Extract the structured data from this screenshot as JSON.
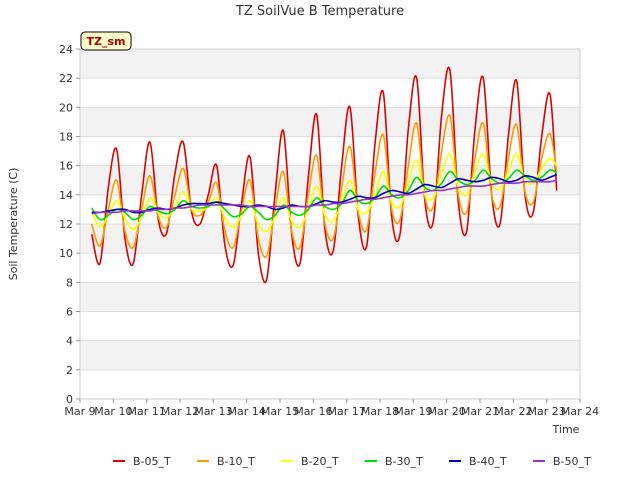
{
  "chart_data": {
    "type": "line",
    "title": "TZ SoilVue B Temperature",
    "xlabel": "Time",
    "ylabel": "Soil Temperature (C)",
    "badge": "TZ_sm",
    "ylim": [
      0,
      24
    ],
    "yticks": [
      0,
      2,
      4,
      6,
      8,
      10,
      12,
      14,
      16,
      18,
      20,
      22,
      24
    ],
    "xlim": [
      9,
      24
    ],
    "xticks": [
      9,
      10,
      11,
      12,
      13,
      14,
      15,
      16,
      17,
      18,
      19,
      20,
      21,
      22,
      23,
      24
    ],
    "xtick_labels": [
      "Mar 9",
      "Mar 10",
      "Mar 11",
      "Mar 12",
      "Mar 13",
      "Mar 14",
      "Mar 15",
      "Mar 16",
      "Mar 17",
      "Mar 18",
      "Mar 19",
      "Mar 20",
      "Mar 21",
      "Mar 22",
      "Mar 23",
      "Mar 24"
    ],
    "legend_position": "bottom",
    "grid": "alternating horizontal bands",
    "band_color": "#f2f2f2",
    "x": [
      9.35,
      9.6,
      9.85,
      10.1,
      10.35,
      10.6,
      10.85,
      11.1,
      11.35,
      11.6,
      11.85,
      12.1,
      12.35,
      12.6,
      12.85,
      13.1,
      13.35,
      13.6,
      13.85,
      14.1,
      14.35,
      14.6,
      14.85,
      15.1,
      15.35,
      15.6,
      15.85,
      16.1,
      16.35,
      16.6,
      16.85,
      17.1,
      17.35,
      17.6,
      17.85,
      18.1,
      18.35,
      18.6,
      18.85,
      19.1,
      19.35,
      19.6,
      19.85,
      20.1,
      20.35,
      20.6,
      20.85,
      21.1,
      21.35,
      21.6,
      21.85,
      22.1,
      22.35,
      22.6,
      22.85,
      23.1,
      23.3
    ],
    "series": [
      {
        "name": "B-05_T",
        "color": "#dd0000",
        "values": [
          11.3,
          9.3,
          14.5,
          17.1,
          11.0,
          9.3,
          14.0,
          17.6,
          12.3,
          11.4,
          15.5,
          17.6,
          12.8,
          12.0,
          14.0,
          16.0,
          10.5,
          9.2,
          13.5,
          16.6,
          10.0,
          8.2,
          14.0,
          18.4,
          11.3,
          9.3,
          15.2,
          19.5,
          11.6,
          10.2,
          16.0,
          20.0,
          12.5,
          10.5,
          17.5,
          21.0,
          12.5,
          11.3,
          18.5,
          22.0,
          13.5,
          12.2,
          19.5,
          22.5,
          13.5,
          11.5,
          18.5,
          22.0,
          14.0,
          12.0,
          18.0,
          21.8,
          14.0,
          12.8,
          18.0,
          20.9,
          14.3
        ]
      },
      {
        "name": "B-10_T",
        "color": "#ff9900",
        "values": [
          12.0,
          10.5,
          13.0,
          15.0,
          11.5,
          10.4,
          13.0,
          15.3,
          12.5,
          11.8,
          14.0,
          15.8,
          13.0,
          12.6,
          13.5,
          14.8,
          11.5,
          10.4,
          13.0,
          15.0,
          11.0,
          9.8,
          13.0,
          15.6,
          11.5,
          10.4,
          14.0,
          16.7,
          12.0,
          11.0,
          14.5,
          17.3,
          12.8,
          11.6,
          15.5,
          18.1,
          13.0,
          12.3,
          16.0,
          18.9,
          13.8,
          13.2,
          17.0,
          19.4,
          14.0,
          12.8,
          16.5,
          18.9,
          14.0,
          13.2,
          16.5,
          18.8,
          14.2,
          13.5,
          16.5,
          18.2,
          15.5
        ]
      },
      {
        "name": "B-20_T",
        "color": "#ffff00",
        "values": [
          12.8,
          11.8,
          12.6,
          13.6,
          12.4,
          11.6,
          12.5,
          13.8,
          12.8,
          12.4,
          13.2,
          14.2,
          13.0,
          12.9,
          13.2,
          13.8,
          12.4,
          11.8,
          12.6,
          13.6,
          12.0,
          11.5,
          12.5,
          13.8,
          12.2,
          11.8,
          13.0,
          14.6,
          12.6,
          12.2,
          13.5,
          15.0,
          13.0,
          12.8,
          14.0,
          15.6,
          13.5,
          13.2,
          14.8,
          16.4,
          14.0,
          13.8,
          15.5,
          16.8,
          14.5,
          14.0,
          15.6,
          16.8,
          14.8,
          14.4,
          15.6,
          16.8,
          15.0,
          14.8,
          15.8,
          16.5,
          16.0
        ]
      },
      {
        "name": "B-30_T",
        "color": "#00dd00",
        "values": [
          13.1,
          12.3,
          12.6,
          13.0,
          12.8,
          12.3,
          12.6,
          13.2,
          12.9,
          12.7,
          13.0,
          13.6,
          13.2,
          13.1,
          13.2,
          13.5,
          13.0,
          12.5,
          12.7,
          13.2,
          12.8,
          12.3,
          12.6,
          13.3,
          12.8,
          12.6,
          13.0,
          13.8,
          13.2,
          13.0,
          13.4,
          14.3,
          13.6,
          13.4,
          13.8,
          14.6,
          14.0,
          13.8,
          14.3,
          15.2,
          14.5,
          14.3,
          14.8,
          15.6,
          15.0,
          14.7,
          15.0,
          15.7,
          15.1,
          14.8,
          15.1,
          15.7,
          15.3,
          15.0,
          15.2,
          15.7,
          15.5
        ]
      },
      {
        "name": "B-40_T",
        "color": "#0000aa",
        "values": [
          12.8,
          12.8,
          12.9,
          13.0,
          13.0,
          12.8,
          12.8,
          13.0,
          13.1,
          13.0,
          13.1,
          13.3,
          13.4,
          13.4,
          13.4,
          13.5,
          13.4,
          13.3,
          13.2,
          13.2,
          13.3,
          13.2,
          13.0,
          13.1,
          13.3,
          13.2,
          13.2,
          13.4,
          13.6,
          13.5,
          13.5,
          13.7,
          13.9,
          13.8,
          13.8,
          14.1,
          14.3,
          14.2,
          14.1,
          14.4,
          14.7,
          14.6,
          14.5,
          14.8,
          15.1,
          15.0,
          14.9,
          15.0,
          15.2,
          15.1,
          14.9,
          15.0,
          15.3,
          15.2,
          15.0,
          15.2,
          15.4
        ]
      },
      {
        "name": "B-50_T",
        "color": "#9933cc",
        "values": [
          12.7,
          12.8,
          12.8,
          12.8,
          12.9,
          12.9,
          12.9,
          12.9,
          13.0,
          13.0,
          13.1,
          13.1,
          13.2,
          13.3,
          13.3,
          13.3,
          13.3,
          13.3,
          13.3,
          13.2,
          13.2,
          13.2,
          13.2,
          13.2,
          13.2,
          13.2,
          13.2,
          13.3,
          13.3,
          13.4,
          13.4,
          13.5,
          13.6,
          13.7,
          13.7,
          13.8,
          13.9,
          14.0,
          14.0,
          14.1,
          14.2,
          14.3,
          14.3,
          14.4,
          14.5,
          14.6,
          14.6,
          14.6,
          14.7,
          14.8,
          14.8,
          14.8,
          14.9,
          14.9,
          14.9,
          14.9,
          15.0
        ]
      }
    ]
  }
}
